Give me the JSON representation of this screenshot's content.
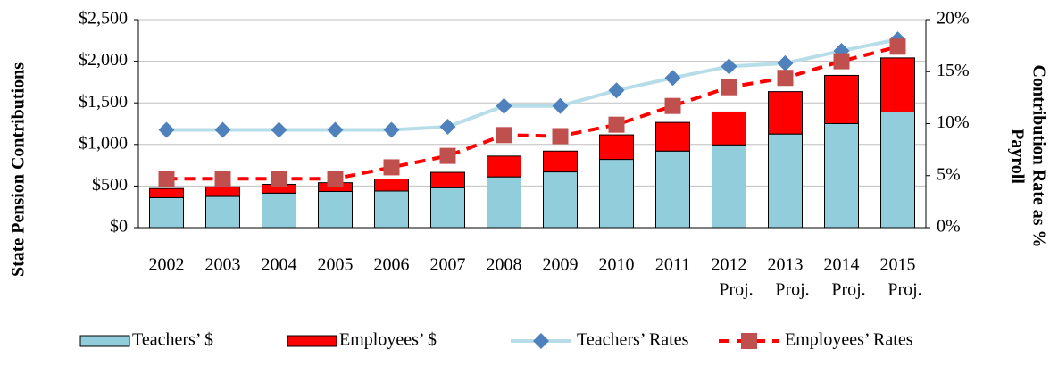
{
  "chart_data": {
    "type": "bar-line-combo",
    "y_label": "State Pension Contributions",
    "y2_label": [
      "Contribution Rate as %",
      "Payroll"
    ],
    "categories": [
      [
        "2002"
      ],
      [
        "2003"
      ],
      [
        "2004"
      ],
      [
        "2005"
      ],
      [
        "2006"
      ],
      [
        "2007"
      ],
      [
        "2008"
      ],
      [
        "2009"
      ],
      [
        "2010"
      ],
      [
        "2011"
      ],
      [
        "2012",
        "Proj."
      ],
      [
        "2013",
        "Proj."
      ],
      [
        "2014",
        "Proj."
      ],
      [
        "2015",
        "Proj."
      ]
    ],
    "ylim": [
      0,
      2500
    ],
    "yticks": [
      {
        "value": 0,
        "label": "$0"
      },
      {
        "value": 500,
        "label": "$500"
      },
      {
        "value": 1000,
        "label": "$1,000"
      },
      {
        "value": 1500,
        "label": "$1,500"
      },
      {
        "value": 2000,
        "label": "$2,000"
      },
      {
        "value": 2500,
        "label": "$2,500"
      }
    ],
    "y2lim": [
      0,
      20
    ],
    "y2ticks": [
      {
        "value": 0,
        "label": "0%"
      },
      {
        "value": 5,
        "label": "5%"
      },
      {
        "value": 10,
        "label": "10%"
      },
      {
        "value": 15,
        "label": "15%"
      },
      {
        "value": 20,
        "label": "20%"
      }
    ],
    "grid": true,
    "legend": "bottom",
    "series": [
      {
        "name": "Teachers’ $",
        "kind": "bar",
        "color": "#92cddc",
        "values": [
          360,
          375,
          415,
          435,
          440,
          480,
          610,
          670,
          820,
          920,
          995,
          1125,
          1250,
          1390
        ]
      },
      {
        "name": "Employees’ $",
        "kind": "bar",
        "color": "#ff0000",
        "values": [
          110,
          115,
          105,
          105,
          145,
          185,
          250,
          250,
          295,
          345,
          395,
          510,
          580,
          650
        ]
      },
      {
        "name": "Teachers’ Rates",
        "kind": "line",
        "axis": "y2",
        "color": "#b7dee8",
        "marker_color": "#4f81bd",
        "values": [
          9.4,
          9.4,
          9.4,
          9.4,
          9.4,
          9.7,
          11.7,
          11.7,
          13.2,
          14.4,
          15.5,
          15.8,
          17.0,
          18.1
        ]
      },
      {
        "name": "Employees’ Rates",
        "kind": "line",
        "axis": "y2",
        "dashed": true,
        "color": "#ff0000",
        "marker_color": "#c0504d",
        "values": [
          4.7,
          4.7,
          4.7,
          4.7,
          5.8,
          6.9,
          8.9,
          8.8,
          9.9,
          11.7,
          13.5,
          14.4,
          16.0,
          17.4
        ]
      }
    ]
  }
}
